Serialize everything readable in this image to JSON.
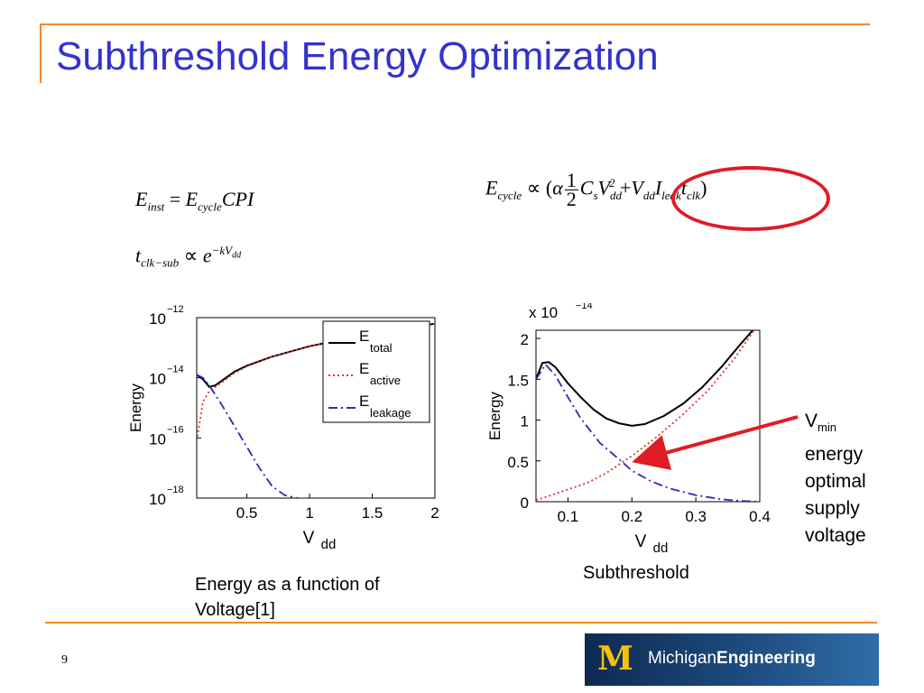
{
  "slide": {
    "title": "Subthreshold Energy Optimization",
    "page_number": "9"
  },
  "equations": {
    "e_inst": "E_inst = E_cycle CPI",
    "t_clk_sub": "t_clk−sub ∝ e^(−kV_dd)",
    "e_cycle": "E_cycle ∝ (α ½ C_s V_dd² + V_dd I_leak t_clk)"
  },
  "captions": {
    "left": "Energy as a function of Voltage[1]",
    "right": "Subthreshold"
  },
  "annotation": {
    "label": "V",
    "label_sub": "min",
    "lines": [
      "energy",
      "optimal",
      "supply",
      "voltage"
    ]
  },
  "logo": {
    "prefix": "Michigan",
    "suffix": "Engineering"
  },
  "colors": {
    "title": "#3333cc",
    "accent": "#f08a24",
    "highlight": "#e01b24",
    "total": "#000000",
    "active": "#e03030",
    "leakage": "#2b2bb0"
  },
  "chart_data": [
    {
      "type": "line",
      "xlabel": "V",
      "xlabel_sub": "dd",
      "ylabel": "Energy",
      "yscale": "log",
      "xlim": [
        0.1,
        2
      ],
      "ylim": [
        1e-18,
        1e-12
      ],
      "xticks": [
        0.5,
        1,
        1.5,
        2
      ],
      "xtick_labels": [
        "0.5",
        "1",
        "1.5",
        "2"
      ],
      "yticks": [
        -12,
        -14,
        -16,
        -18
      ],
      "ytick_labels": [
        "10",
        "10",
        "10",
        "10"
      ],
      "ytick_exponents": [
        "−12",
        "−14",
        "−16",
        "−18"
      ],
      "legend": "top-right",
      "series": [
        {
          "name": "E",
          "name_sub": "total",
          "style": "solid",
          "color": "#000000",
          "x": [
            0.1,
            0.15,
            0.2,
            0.25,
            0.3,
            0.4,
            0.5,
            0.7,
            1.0,
            1.3,
            1.7,
            2.0
          ],
          "y": [
            -13.9,
            -14.05,
            -14.3,
            -14.25,
            -14.1,
            -13.8,
            -13.6,
            -13.3,
            -12.95,
            -12.7,
            -12.4,
            -12.2
          ]
        },
        {
          "name": "E",
          "name_sub": "active",
          "style": "dotted",
          "color": "#e03030",
          "x": [
            0.1,
            0.15,
            0.2,
            0.25,
            0.3,
            0.4,
            0.5,
            0.7,
            1.0,
            1.3,
            1.7,
            2.0
          ],
          "y": [
            -16.1,
            -14.8,
            -14.45,
            -14.3,
            -14.15,
            -13.85,
            -13.62,
            -13.3,
            -12.95,
            -12.7,
            -12.4,
            -12.2
          ]
        },
        {
          "name": "E",
          "name_sub": "leakage",
          "style": "dashdot",
          "color": "#2b2bb0",
          "x": [
            0.1,
            0.15,
            0.2,
            0.3,
            0.4,
            0.5,
            0.6,
            0.7,
            0.8,
            0.9,
            1.0,
            1.2,
            1.5,
            1.8
          ],
          "y": [
            -13.9,
            -14.0,
            -14.25,
            -14.9,
            -15.6,
            -16.3,
            -17.0,
            -17.6,
            -17.9,
            -18.0,
            -18.05,
            -18.05,
            -18.05,
            -18.05
          ]
        }
      ]
    },
    {
      "type": "line",
      "xlabel": "V",
      "xlabel_sub": "dd",
      "ylabel": "Energy",
      "ymultiplier": "x 10",
      "ymultiplier_exp": "−14",
      "xlim": [
        0.05,
        0.4
      ],
      "ylim": [
        0,
        2.1
      ],
      "xticks": [
        0.1,
        0.2,
        0.3,
        0.4
      ],
      "xtick_labels": [
        "0.1",
        "0.2",
        "0.3",
        "0.4"
      ],
      "yticks": [
        0,
        0.5,
        1,
        1.5,
        2
      ],
      "ytick_labels": [
        "0",
        "0.5",
        "1",
        "1.5",
        "2"
      ],
      "series": [
        {
          "name": "E",
          "name_sub": "total",
          "style": "solid",
          "color": "#000000",
          "x": [
            0.05,
            0.06,
            0.07,
            0.08,
            0.1,
            0.12,
            0.14,
            0.16,
            0.18,
            0.2,
            0.22,
            0.25,
            0.28,
            0.31,
            0.34,
            0.37,
            0.4
          ],
          "y": [
            1.5,
            1.7,
            1.71,
            1.65,
            1.45,
            1.28,
            1.13,
            1.02,
            0.96,
            0.93,
            0.95,
            1.05,
            1.2,
            1.4,
            1.65,
            1.93,
            2.2
          ]
        },
        {
          "name": "E",
          "name_sub": "active",
          "style": "dotted",
          "color": "#e03030",
          "x": [
            0.05,
            0.07,
            0.1,
            0.13,
            0.16,
            0.2,
            0.24,
            0.28,
            0.32,
            0.36,
            0.4
          ],
          "y": [
            0.02,
            0.07,
            0.15,
            0.23,
            0.35,
            0.56,
            0.8,
            1.07,
            1.37,
            1.75,
            2.2
          ]
        },
        {
          "name": "E",
          "name_sub": "leakage",
          "style": "dashdot",
          "color": "#2b2bb0",
          "x": [
            0.05,
            0.065,
            0.08,
            0.1,
            0.12,
            0.15,
            0.18,
            0.2,
            0.23,
            0.26,
            0.3,
            0.34,
            0.37,
            0.4
          ],
          "y": [
            1.5,
            1.68,
            1.55,
            1.28,
            1.02,
            0.72,
            0.52,
            0.38,
            0.25,
            0.16,
            0.08,
            0.03,
            0.01,
            0.0
          ]
        }
      ],
      "annotation_arrow_target": {
        "x": 0.2,
        "y": 0.5
      }
    }
  ]
}
